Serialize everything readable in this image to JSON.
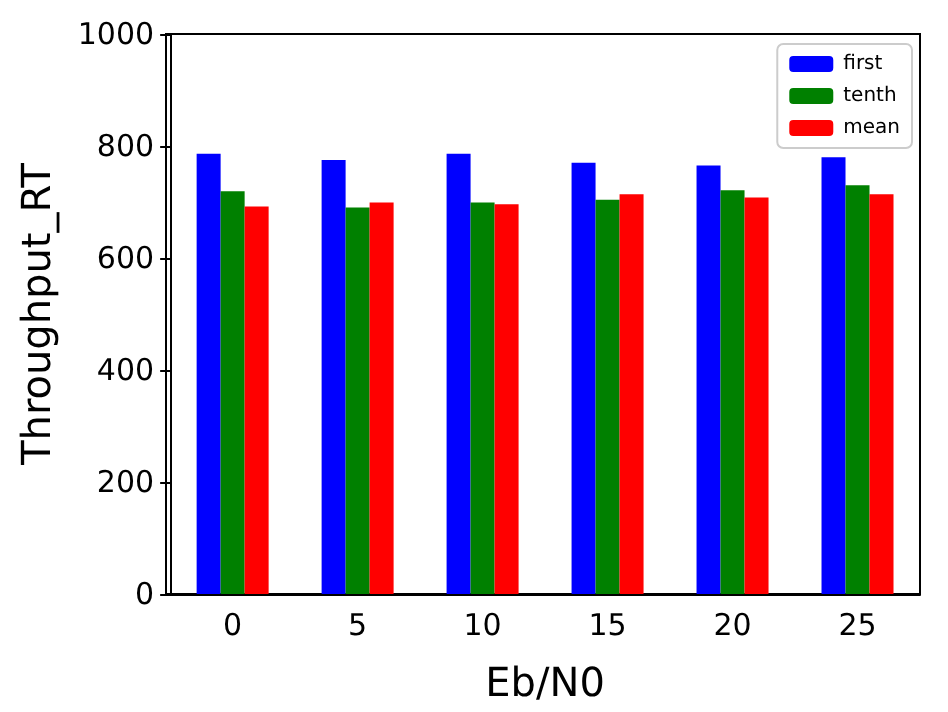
{
  "chart_data": {
    "type": "bar",
    "xlabel": "Eb/N0",
    "ylabel": "Throughput_RT",
    "categories": [
      "0",
      "5",
      "10",
      "15",
      "20",
      "25"
    ],
    "series": [
      {
        "name": "first",
        "color": "#0000ff",
        "values": [
          786,
          775,
          786,
          770,
          765,
          780
        ]
      },
      {
        "name": "tenth",
        "color": "#008000",
        "values": [
          719,
          690,
          699,
          704,
          721,
          730
        ]
      },
      {
        "name": "mean",
        "color": "#ff0000",
        "values": [
          692,
          699,
          696,
          714,
          708,
          714
        ]
      }
    ],
    "ylim": [
      0,
      1000
    ],
    "yticks": [
      0,
      200,
      400,
      600,
      800,
      1000
    ],
    "grid": false,
    "legend": "top right"
  }
}
